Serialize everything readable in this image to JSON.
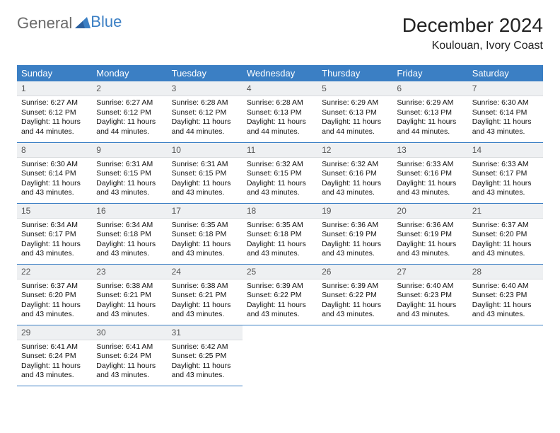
{
  "logo": {
    "text1": "General",
    "text2": "Blue"
  },
  "title": "December 2024",
  "location": "Koulouan, Ivory Coast",
  "colors": {
    "header_bg": "#3b7fc4",
    "header_text": "#ffffff",
    "daynum_bg": "#eef0f2",
    "border": "#3b7fc4",
    "logo_gray": "#6b6b6b",
    "logo_blue": "#3b7fc4"
  },
  "weekdays": [
    "Sunday",
    "Monday",
    "Tuesday",
    "Wednesday",
    "Thursday",
    "Friday",
    "Saturday"
  ],
  "weeks": [
    [
      {
        "n": "1",
        "sr": "6:27 AM",
        "ss": "6:12 PM",
        "dl": "11 hours and 44 minutes."
      },
      {
        "n": "2",
        "sr": "6:27 AM",
        "ss": "6:12 PM",
        "dl": "11 hours and 44 minutes."
      },
      {
        "n": "3",
        "sr": "6:28 AM",
        "ss": "6:12 PM",
        "dl": "11 hours and 44 minutes."
      },
      {
        "n": "4",
        "sr": "6:28 AM",
        "ss": "6:13 PM",
        "dl": "11 hours and 44 minutes."
      },
      {
        "n": "5",
        "sr": "6:29 AM",
        "ss": "6:13 PM",
        "dl": "11 hours and 44 minutes."
      },
      {
        "n": "6",
        "sr": "6:29 AM",
        "ss": "6:13 PM",
        "dl": "11 hours and 44 minutes."
      },
      {
        "n": "7",
        "sr": "6:30 AM",
        "ss": "6:14 PM",
        "dl": "11 hours and 43 minutes."
      }
    ],
    [
      {
        "n": "8",
        "sr": "6:30 AM",
        "ss": "6:14 PM",
        "dl": "11 hours and 43 minutes."
      },
      {
        "n": "9",
        "sr": "6:31 AM",
        "ss": "6:15 PM",
        "dl": "11 hours and 43 minutes."
      },
      {
        "n": "10",
        "sr": "6:31 AM",
        "ss": "6:15 PM",
        "dl": "11 hours and 43 minutes."
      },
      {
        "n": "11",
        "sr": "6:32 AM",
        "ss": "6:15 PM",
        "dl": "11 hours and 43 minutes."
      },
      {
        "n": "12",
        "sr": "6:32 AM",
        "ss": "6:16 PM",
        "dl": "11 hours and 43 minutes."
      },
      {
        "n": "13",
        "sr": "6:33 AM",
        "ss": "6:16 PM",
        "dl": "11 hours and 43 minutes."
      },
      {
        "n": "14",
        "sr": "6:33 AM",
        "ss": "6:17 PM",
        "dl": "11 hours and 43 minutes."
      }
    ],
    [
      {
        "n": "15",
        "sr": "6:34 AM",
        "ss": "6:17 PM",
        "dl": "11 hours and 43 minutes."
      },
      {
        "n": "16",
        "sr": "6:34 AM",
        "ss": "6:18 PM",
        "dl": "11 hours and 43 minutes."
      },
      {
        "n": "17",
        "sr": "6:35 AM",
        "ss": "6:18 PM",
        "dl": "11 hours and 43 minutes."
      },
      {
        "n": "18",
        "sr": "6:35 AM",
        "ss": "6:18 PM",
        "dl": "11 hours and 43 minutes."
      },
      {
        "n": "19",
        "sr": "6:36 AM",
        "ss": "6:19 PM",
        "dl": "11 hours and 43 minutes."
      },
      {
        "n": "20",
        "sr": "6:36 AM",
        "ss": "6:19 PM",
        "dl": "11 hours and 43 minutes."
      },
      {
        "n": "21",
        "sr": "6:37 AM",
        "ss": "6:20 PM",
        "dl": "11 hours and 43 minutes."
      }
    ],
    [
      {
        "n": "22",
        "sr": "6:37 AM",
        "ss": "6:20 PM",
        "dl": "11 hours and 43 minutes."
      },
      {
        "n": "23",
        "sr": "6:38 AM",
        "ss": "6:21 PM",
        "dl": "11 hours and 43 minutes."
      },
      {
        "n": "24",
        "sr": "6:38 AM",
        "ss": "6:21 PM",
        "dl": "11 hours and 43 minutes."
      },
      {
        "n": "25",
        "sr": "6:39 AM",
        "ss": "6:22 PM",
        "dl": "11 hours and 43 minutes."
      },
      {
        "n": "26",
        "sr": "6:39 AM",
        "ss": "6:22 PM",
        "dl": "11 hours and 43 minutes."
      },
      {
        "n": "27",
        "sr": "6:40 AM",
        "ss": "6:23 PM",
        "dl": "11 hours and 43 minutes."
      },
      {
        "n": "28",
        "sr": "6:40 AM",
        "ss": "6:23 PM",
        "dl": "11 hours and 43 minutes."
      }
    ],
    [
      {
        "n": "29",
        "sr": "6:41 AM",
        "ss": "6:24 PM",
        "dl": "11 hours and 43 minutes."
      },
      {
        "n": "30",
        "sr": "6:41 AM",
        "ss": "6:24 PM",
        "dl": "11 hours and 43 minutes."
      },
      {
        "n": "31",
        "sr": "6:42 AM",
        "ss": "6:25 PM",
        "dl": "11 hours and 43 minutes."
      },
      null,
      null,
      null,
      null
    ]
  ],
  "labels": {
    "sunrise": "Sunrise:",
    "sunset": "Sunset:",
    "daylight": "Daylight:"
  }
}
